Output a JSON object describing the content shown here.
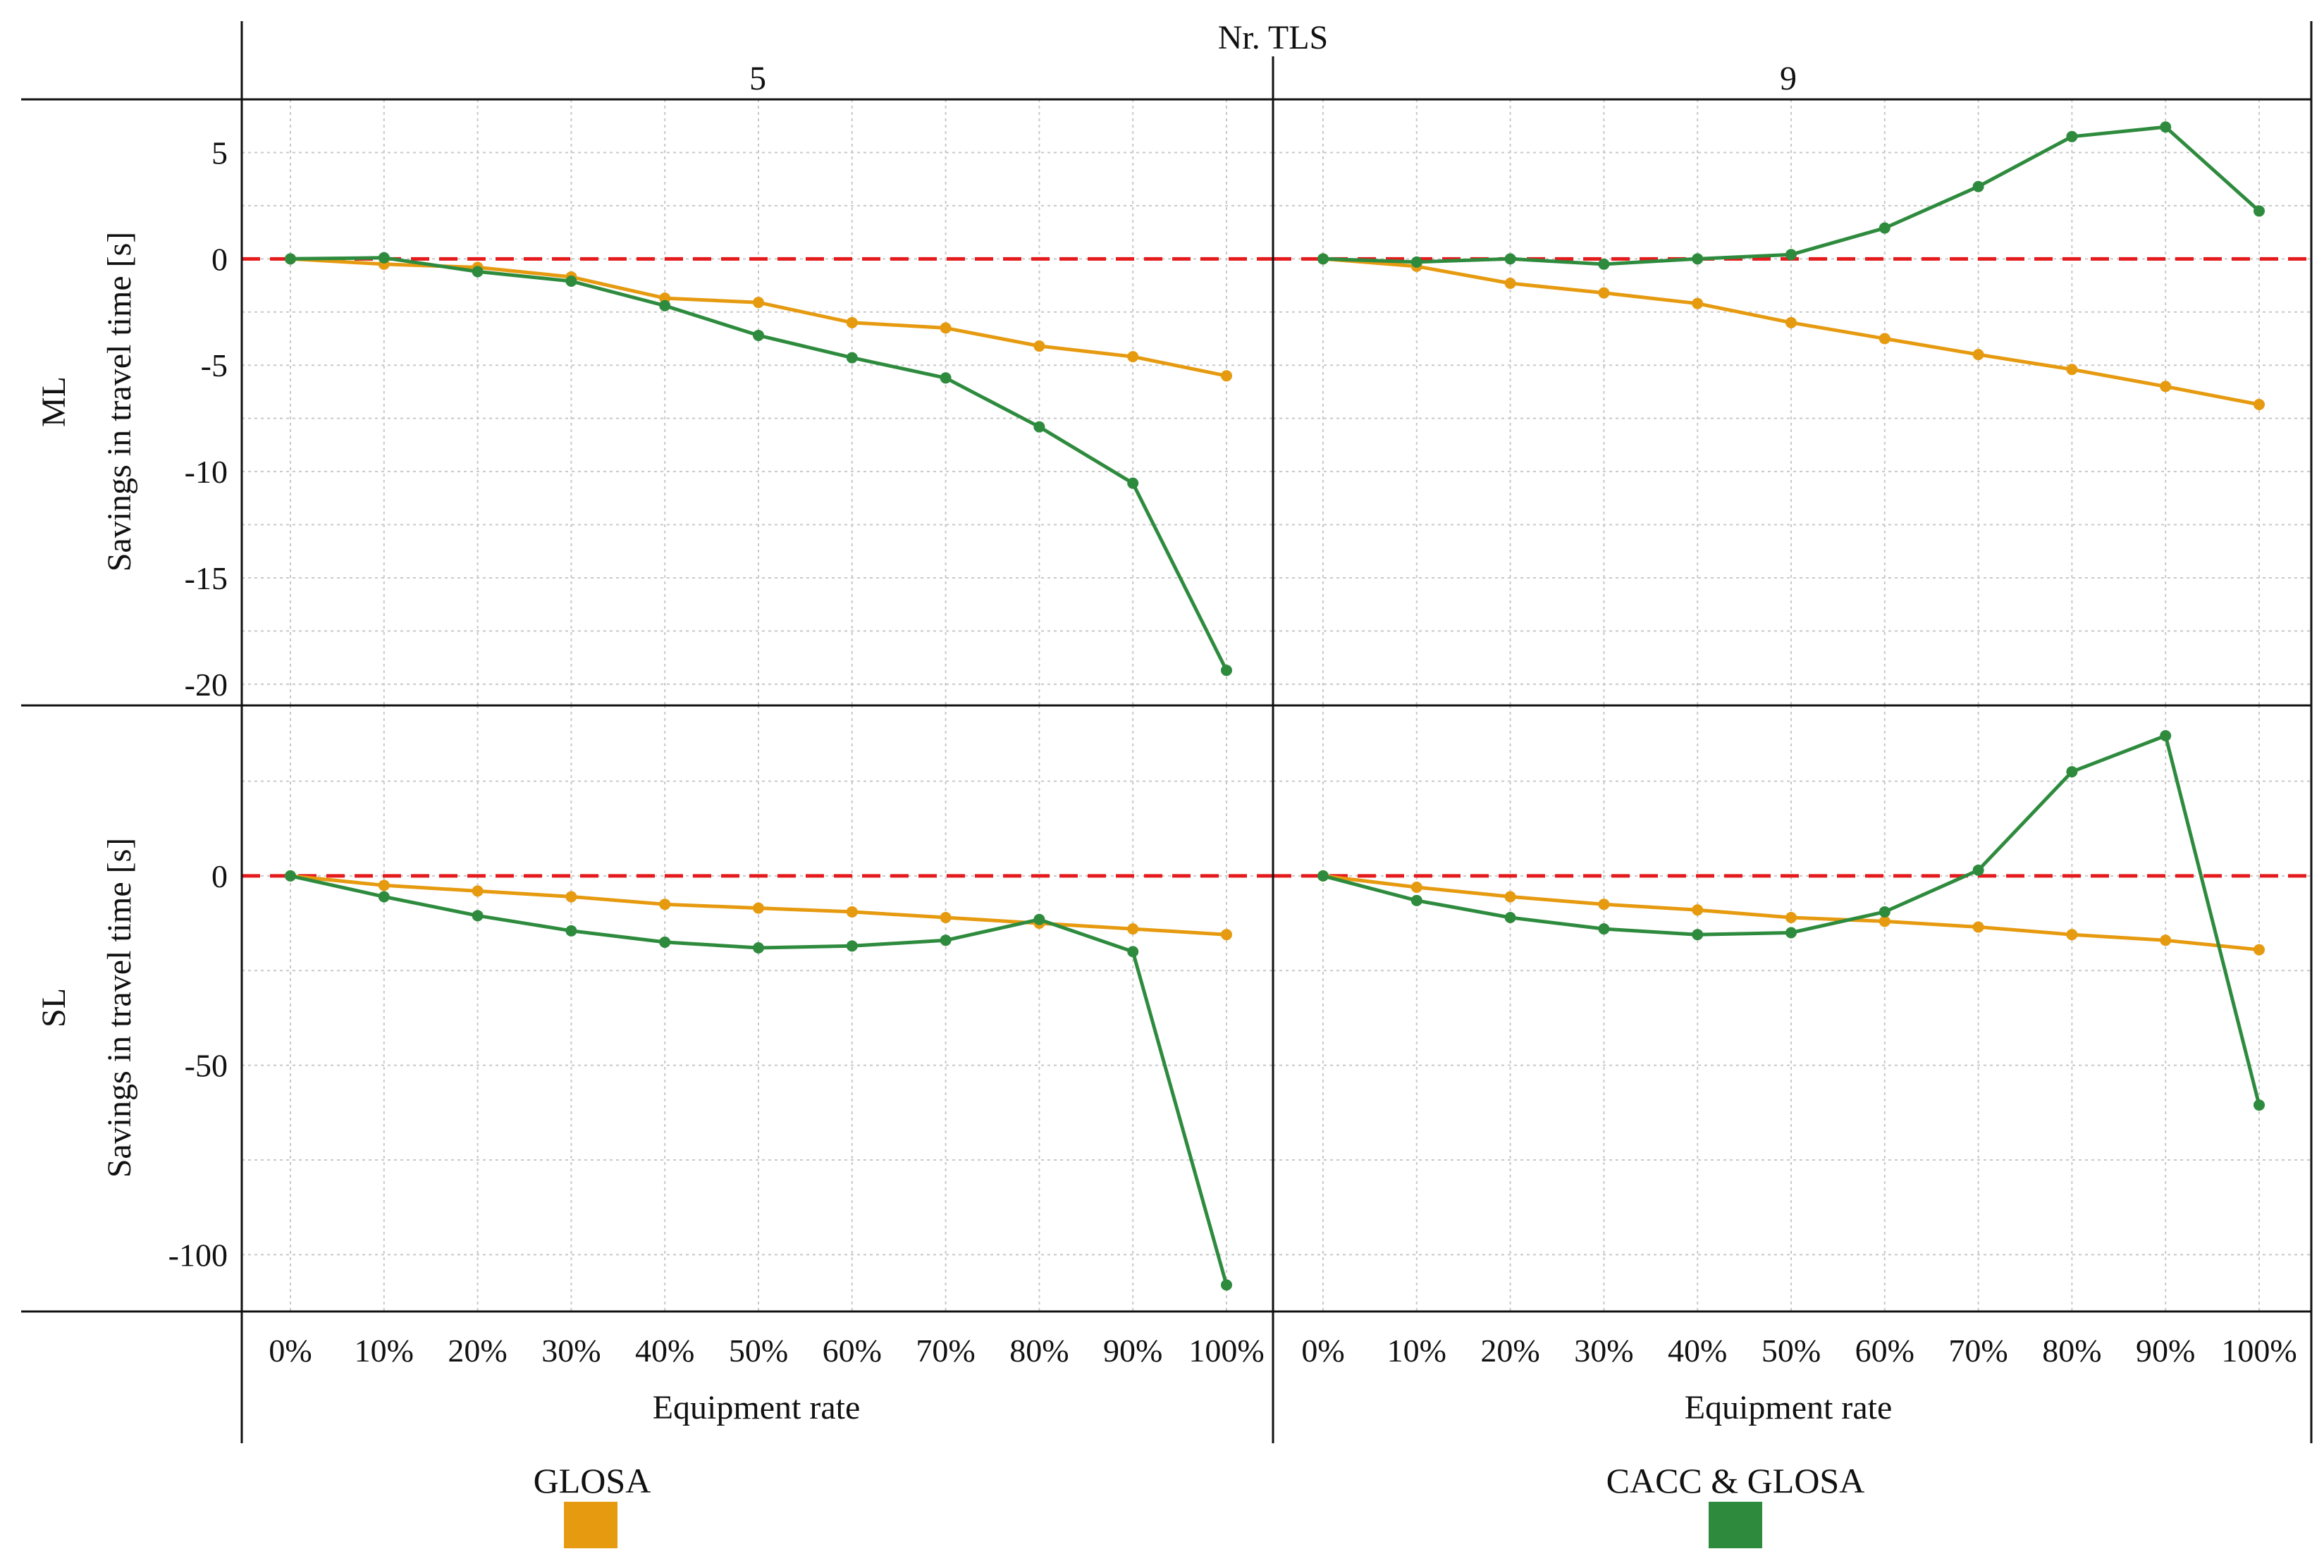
{
  "chart_data": {
    "type": "line",
    "header": {
      "column_title": "Nr. TLS",
      "columns": [
        "5",
        "9"
      ],
      "rows": [
        "ML",
        "SL"
      ]
    },
    "ylabel": "Savings in travel time [s]",
    "xlabel": "Equipment rate",
    "categories": [
      "0%",
      "10%",
      "20%",
      "30%",
      "40%",
      "50%",
      "60%",
      "70%",
      "80%",
      "90%",
      "100%"
    ],
    "legend": [
      {
        "name": "GLOSA",
        "color": "#e69a0f"
      },
      {
        "name": "CACC & GLOSA",
        "color": "#2e8b3e"
      }
    ],
    "reference_line": {
      "y": 0,
      "color": "#e41a1c"
    },
    "panels": [
      {
        "row": "ML",
        "col": "5",
        "ylim": [
          -21,
          7.5
        ],
        "yticks": [
          {
            "v": 5,
            "t": "5"
          },
          {
            "v": 0,
            "t": "0"
          },
          {
            "v": -5,
            "t": "-5"
          },
          {
            "v": -10,
            "t": "-10"
          },
          {
            "v": -15,
            "t": "-15"
          },
          {
            "v": -20,
            "t": "-20"
          }
        ],
        "series": [
          {
            "name": "GLOSA",
            "values": [
              0,
              -0.25,
              -0.4,
              -0.85,
              -1.85,
              -2.05,
              -3.0,
              -3.25,
              -4.1,
              -4.6,
              -5.5
            ]
          },
          {
            "name": "CACC & GLOSA",
            "values": [
              0,
              0.05,
              -0.6,
              -1.05,
              -2.2,
              -3.6,
              -4.65,
              -5.6,
              -7.9,
              -10.55,
              -19.35
            ]
          }
        ]
      },
      {
        "row": "ML",
        "col": "9",
        "ylim": [
          -21,
          7.5
        ],
        "yticks": [],
        "series": [
          {
            "name": "GLOSA",
            "values": [
              0,
              -0.35,
              -1.15,
              -1.6,
              -2.1,
              -3.0,
              -3.75,
              -4.5,
              -5.2,
              -6.0,
              -6.85
            ]
          },
          {
            "name": "CACC & GLOSA",
            "values": [
              0,
              -0.15,
              0,
              -0.25,
              0,
              0.2,
              1.45,
              3.4,
              5.75,
              6.2,
              2.25
            ]
          }
        ]
      },
      {
        "row": "SL",
        "col": "5",
        "ylim": [
          -115,
          45
        ],
        "yticks": [
          {
            "v": 0,
            "t": "0"
          },
          {
            "v": -50,
            "t": "-50"
          },
          {
            "v": -100,
            "t": "-100"
          }
        ],
        "series": [
          {
            "name": "GLOSA",
            "values": [
              0,
              -2.5,
              -4,
              -5.5,
              -7.5,
              -8.5,
              -9.5,
              -11,
              -12.5,
              -14,
              -15.5
            ]
          },
          {
            "name": "CACC & GLOSA",
            "values": [
              0,
              -5.5,
              -10.5,
              -14.5,
              -17.5,
              -19,
              -18.5,
              -17,
              -11.5,
              -20,
              -108
            ]
          }
        ]
      },
      {
        "row": "SL",
        "col": "9",
        "ylim": [
          -115,
          45
        ],
        "yticks": [],
        "series": [
          {
            "name": "GLOSA",
            "values": [
              0,
              -3,
              -5.5,
              -7.5,
              -9,
              -11,
              -12,
              -13.5,
              -15.5,
              -17,
              -19.5
            ]
          },
          {
            "name": "CACC & GLOSA",
            "values": [
              0,
              -6.5,
              -11,
              -14,
              -15.5,
              -15,
              -9.5,
              1.5,
              27.5,
              37,
              -60.5
            ]
          }
        ]
      }
    ]
  }
}
